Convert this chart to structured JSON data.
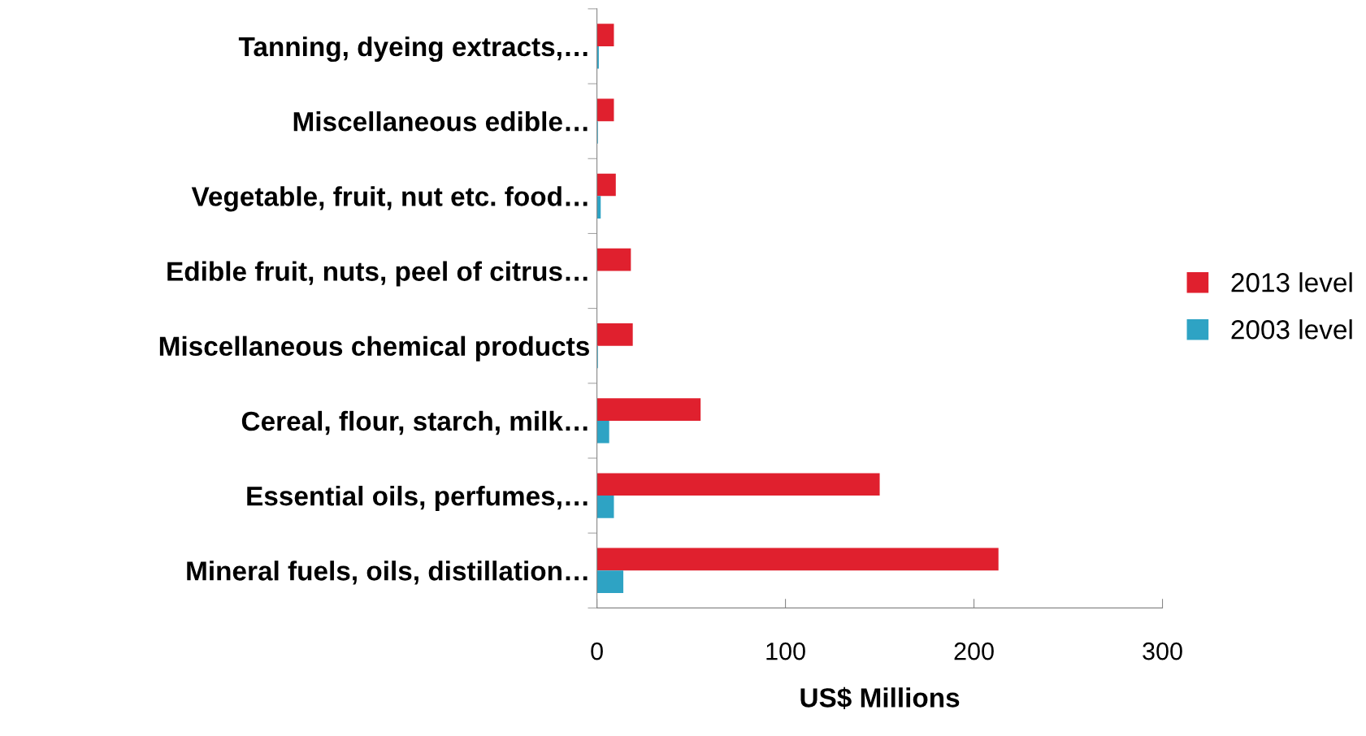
{
  "chart_data": {
    "type": "bar",
    "orientation": "horizontal",
    "xlabel": "US$ Millions",
    "categories": [
      "Tanning, dyeing extracts,…",
      "Miscellaneous edible…",
      "Vegetable, fruit, nut etc. food…",
      "Edible fruit, nuts, peel of citrus…",
      "Miscellaneous chemical products",
      "Cereal, flour, starch, milk…",
      "Essential oils, perfumes,…",
      "Mineral fuels, oils, distillation…"
    ],
    "series": [
      {
        "name": "2013 level",
        "color": "#e0202e",
        "values": [
          9,
          9,
          10,
          18,
          19,
          55,
          150,
          213
        ]
      },
      {
        "name": "2003 level",
        "color": "#2ea3c4",
        "values": [
          1,
          0.5,
          2,
          null,
          0.5,
          6.5,
          9,
          14
        ]
      }
    ],
    "xlim": [
      0,
      300
    ],
    "xticks": [
      0,
      100,
      200,
      300
    ],
    "legend": "right",
    "grid": false
  }
}
